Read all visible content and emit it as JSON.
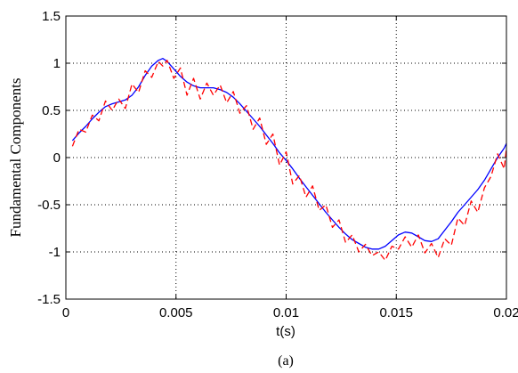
{
  "chart_data": {
    "type": "line",
    "title": "",
    "xlabel": "t(s)",
    "ylabel": "Fundamental Components",
    "caption": "(a)",
    "xlim": [
      0,
      0.02
    ],
    "ylim": [
      -1.5,
      1.5
    ],
    "xticks": [
      0,
      0.005,
      0.01,
      0.015,
      0.02
    ],
    "xtick_labels": [
      "0",
      "0.005",
      "0.01",
      "0.015",
      "0.02"
    ],
    "yticks": [
      -1.5,
      -1,
      -0.5,
      0,
      0.5,
      1,
      1.5
    ],
    "ytick_labels": [
      "-1.5",
      "-1",
      "-0.5",
      "0",
      "0.5",
      "1",
      "1.5"
    ],
    "grid": true,
    "series": [
      {
        "color": "#0000ff",
        "style": "solid",
        "x": [
          0.0003,
          0.0006,
          0.0009,
          0.0012,
          0.0015,
          0.0018,
          0.0021,
          0.0024,
          0.0027,
          0.003,
          0.0033,
          0.0036,
          0.0039,
          0.0042,
          0.0044,
          0.0046,
          0.0049,
          0.0052,
          0.0055,
          0.0058,
          0.0061,
          0.0064,
          0.0067,
          0.007,
          0.0073,
          0.0076,
          0.0079,
          0.0082,
          0.0085,
          0.0088,
          0.0091,
          0.0094,
          0.0097,
          0.01,
          0.0103,
          0.0106,
          0.0109,
          0.0112,
          0.0115,
          0.0118,
          0.0121,
          0.0124,
          0.0127,
          0.013,
          0.0133,
          0.0136,
          0.0139,
          0.0142,
          0.0145,
          0.0148,
          0.0151,
          0.0154,
          0.0157,
          0.016,
          0.0163,
          0.0166,
          0.0169,
          0.0172,
          0.0175,
          0.0178,
          0.0181,
          0.0184,
          0.0187,
          0.019,
          0.0193,
          0.0196,
          0.0199,
          0.02
        ],
        "y": [
          0.18,
          0.26,
          0.33,
          0.41,
          0.48,
          0.54,
          0.57,
          0.59,
          0.61,
          0.66,
          0.75,
          0.87,
          0.97,
          1.03,
          1.05,
          1.02,
          0.94,
          0.86,
          0.8,
          0.76,
          0.74,
          0.74,
          0.74,
          0.72,
          0.69,
          0.64,
          0.57,
          0.49,
          0.41,
          0.33,
          0.24,
          0.15,
          0.05,
          -0.03,
          -0.12,
          -0.22,
          -0.31,
          -0.4,
          -0.49,
          -0.58,
          -0.66,
          -0.74,
          -0.81,
          -0.87,
          -0.91,
          -0.95,
          -0.97,
          -0.97,
          -0.94,
          -0.88,
          -0.82,
          -0.79,
          -0.8,
          -0.84,
          -0.88,
          -0.89,
          -0.86,
          -0.77,
          -0.68,
          -0.58,
          -0.5,
          -0.42,
          -0.34,
          -0.24,
          -0.12,
          0.0,
          0.1,
          0.15
        ]
      },
      {
        "color": "#ff0000",
        "style": "dashed",
        "x": [
          0.0003,
          0.0006,
          0.0009,
          0.0012,
          0.0015,
          0.0018,
          0.0021,
          0.0024,
          0.0027,
          0.003,
          0.0033,
          0.0036,
          0.0039,
          0.0042,
          0.0044,
          0.0046,
          0.0049,
          0.0052,
          0.0055,
          0.0058,
          0.0061,
          0.0064,
          0.0067,
          0.007,
          0.0073,
          0.0076,
          0.0079,
          0.0082,
          0.0085,
          0.0088,
          0.0091,
          0.0094,
          0.0097,
          0.01,
          0.0103,
          0.0106,
          0.0109,
          0.0112,
          0.0115,
          0.0118,
          0.0121,
          0.0124,
          0.0127,
          0.013,
          0.0133,
          0.0136,
          0.0139,
          0.0142,
          0.0145,
          0.0148,
          0.0151,
          0.0154,
          0.0157,
          0.016,
          0.0163,
          0.0166,
          0.0169,
          0.0172,
          0.0175,
          0.0178,
          0.0181,
          0.0184,
          0.0187,
          0.019,
          0.0193,
          0.0196,
          0.0199,
          0.02
        ],
        "y": [
          0.12,
          0.3,
          0.27,
          0.45,
          0.39,
          0.6,
          0.5,
          0.62,
          0.52,
          0.78,
          0.69,
          0.92,
          0.85,
          1.02,
          0.97,
          1.03,
          0.84,
          0.95,
          0.66,
          0.84,
          0.62,
          0.79,
          0.66,
          0.77,
          0.58,
          0.7,
          0.47,
          0.55,
          0.3,
          0.42,
          0.14,
          0.25,
          -0.08,
          0.06,
          -0.28,
          -0.19,
          -0.42,
          -0.3,
          -0.56,
          -0.5,
          -0.74,
          -0.66,
          -0.9,
          -0.82,
          -1.0,
          -0.92,
          -1.04,
          -1.0,
          -1.09,
          -0.94,
          -0.97,
          -0.84,
          -0.95,
          -0.82,
          -1.01,
          -0.91,
          -1.06,
          -0.86,
          -0.93,
          -0.64,
          -0.72,
          -0.46,
          -0.58,
          -0.32,
          -0.2,
          0.04,
          -0.12,
          0.1
        ]
      }
    ]
  }
}
